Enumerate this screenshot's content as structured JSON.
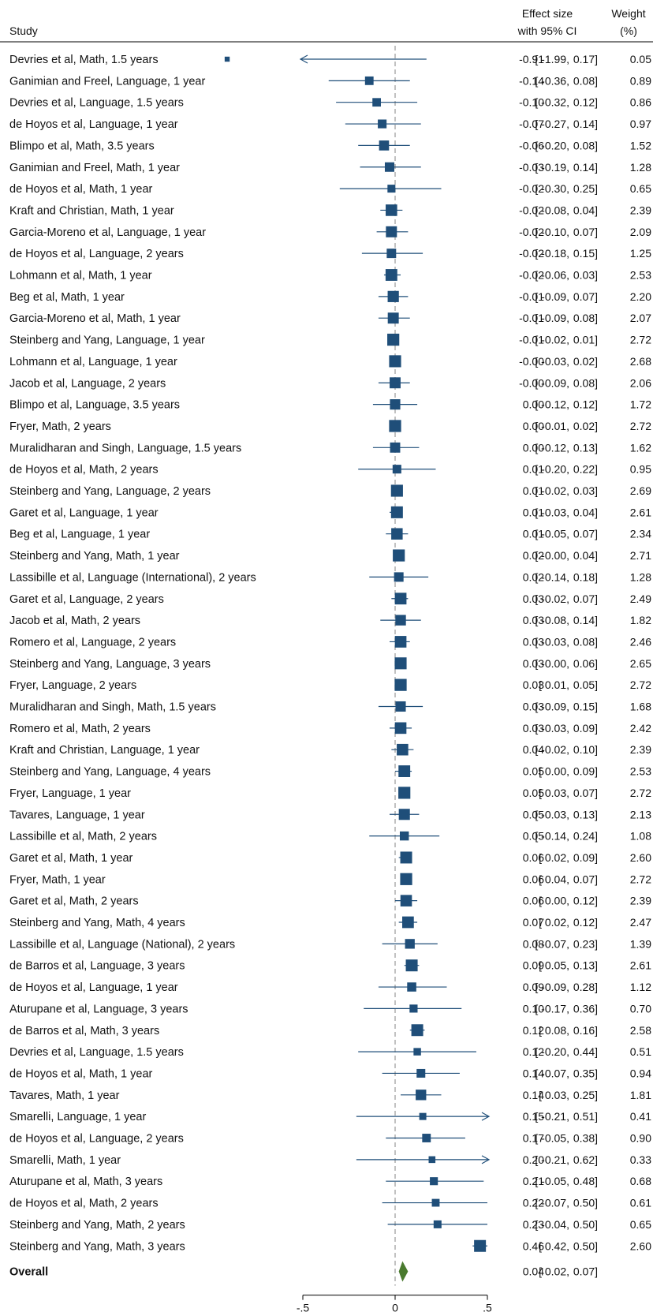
{
  "chart_data": {
    "type": "forest",
    "headers": {
      "study": "Study",
      "effect": [
        "Effect size",
        "with 95% CI"
      ],
      "weight": [
        "Weight",
        "(%)"
      ]
    },
    "x_ticks": [
      "-.5",
      "0",
      ".5"
    ],
    "xlim": [
      -0.5,
      0.5
    ],
    "colors": {
      "marker": "#1f4e79",
      "overall": "#4a7a2e",
      "zero_line": "#999999"
    },
    "studies": [
      {
        "label": "Devries et al, Math, 1.5 years",
        "es": -0.91,
        "lo": -1.99,
        "hi": 0.17,
        "es_txt": "-0.91",
        "lo_txt": "-1.99",
        "hi_txt": "0.17",
        "w_txt": "0.05",
        "w": 0.05
      },
      {
        "label": "Ganimian and Freel, Language, 1 year",
        "es": -0.14,
        "lo": -0.36,
        "hi": 0.08,
        "es_txt": "-0.14",
        "lo_txt": "-0.36",
        "hi_txt": "0.08",
        "w_txt": "0.89",
        "w": 0.89
      },
      {
        "label": "Devries et al, Language, 1.5 years",
        "es": -0.1,
        "lo": -0.32,
        "hi": 0.12,
        "es_txt": "-0.10",
        "lo_txt": "-0.32",
        "hi_txt": "0.12",
        "w_txt": "0.86",
        "w": 0.86
      },
      {
        "label": "de Hoyos et al, Language, 1 year",
        "es": -0.07,
        "lo": -0.27,
        "hi": 0.14,
        "es_txt": "-0.07",
        "lo_txt": "-0.27",
        "hi_txt": "0.14",
        "w_txt": "0.97",
        "w": 0.97
      },
      {
        "label": "Blimpo et al, Math, 3.5 years",
        "es": -0.06,
        "lo": -0.2,
        "hi": 0.08,
        "es_txt": "-0.06",
        "lo_txt": "-0.20",
        "hi_txt": "0.08",
        "w_txt": "1.52",
        "w": 1.52
      },
      {
        "label": "Ganimian and Freel, Math, 1 year",
        "es": -0.03,
        "lo": -0.19,
        "hi": 0.14,
        "es_txt": "-0.03",
        "lo_txt": "-0.19",
        "hi_txt": "0.14",
        "w_txt": "1.28",
        "w": 1.28
      },
      {
        "label": "de Hoyos et al, Math, 1 year",
        "es": -0.02,
        "lo": -0.3,
        "hi": 0.25,
        "es_txt": "-0.02",
        "lo_txt": "-0.30",
        "hi_txt": "0.25",
        "w_txt": "0.65",
        "w": 0.65
      },
      {
        "label": "Kraft and Christian, Math, 1 year",
        "es": -0.02,
        "lo": -0.08,
        "hi": 0.04,
        "es_txt": "-0.02",
        "lo_txt": "-0.08",
        "hi_txt": "0.04",
        "w_txt": "2.39",
        "w": 2.39
      },
      {
        "label": "Garcia-Moreno et al, Language, 1 year",
        "es": -0.02,
        "lo": -0.1,
        "hi": 0.07,
        "es_txt": "-0.02",
        "lo_txt": "-0.10",
        "hi_txt": "0.07",
        "w_txt": "2.09",
        "w": 2.09
      },
      {
        "label": "de Hoyos et al, Language, 2 years",
        "es": -0.02,
        "lo": -0.18,
        "hi": 0.15,
        "es_txt": "-0.02",
        "lo_txt": "-0.18",
        "hi_txt": "0.15",
        "w_txt": "1.25",
        "w": 1.25
      },
      {
        "label": "Lohmann et al, Math, 1 year",
        "es": -0.02,
        "lo": -0.06,
        "hi": 0.03,
        "es_txt": "-0.02",
        "lo_txt": "-0.06",
        "hi_txt": "0.03",
        "w_txt": "2.53",
        "w": 2.53
      },
      {
        "label": "Beg et al, Math, 1 year",
        "es": -0.01,
        "lo": -0.09,
        "hi": 0.07,
        "es_txt": "-0.01",
        "lo_txt": "-0.09",
        "hi_txt": "0.07",
        "w_txt": "2.20",
        "w": 2.2
      },
      {
        "label": "Garcia-Moreno et al, Math, 1 year",
        "es": -0.01,
        "lo": -0.09,
        "hi": 0.08,
        "es_txt": "-0.01",
        "lo_txt": "-0.09",
        "hi_txt": "0.08",
        "w_txt": "2.07",
        "w": 2.07
      },
      {
        "label": "Steinberg and Yang, Language, 1 year",
        "es": -0.01,
        "lo": -0.02,
        "hi": 0.01,
        "es_txt": "-0.01",
        "lo_txt": "-0.02",
        "hi_txt": "0.01",
        "w_txt": "2.72",
        "w": 2.72
      },
      {
        "label": "Lohmann et al, Language, 1 year",
        "es": -0.0,
        "lo": -0.03,
        "hi": 0.02,
        "es_txt": "-0.00",
        "lo_txt": "-0.03",
        "hi_txt": "0.02",
        "w_txt": "2.68",
        "w": 2.68
      },
      {
        "label": "Jacob et al, Language, 2 years",
        "es": -0.0,
        "lo": -0.09,
        "hi": 0.08,
        "es_txt": "-0.00",
        "lo_txt": "-0.09",
        "hi_txt": "0.08",
        "w_txt": "2.06",
        "w": 2.06
      },
      {
        "label": "Blimpo et al, Language, 3.5 years",
        "es": 0.0,
        "lo": -0.12,
        "hi": 0.12,
        "es_txt": "0.00",
        "lo_txt": "-0.12",
        "hi_txt": "0.12",
        "w_txt": "1.72",
        "w": 1.72
      },
      {
        "label": "Fryer, Math, 2 years",
        "es": 0.0,
        "lo": -0.01,
        "hi": 0.02,
        "es_txt": "0.00",
        "lo_txt": "-0.01",
        "hi_txt": "0.02",
        "w_txt": "2.72",
        "w": 2.72
      },
      {
        "label": "Muralidharan and Singh, Language, 1.5 years",
        "es": 0.0,
        "lo": -0.12,
        "hi": 0.13,
        "es_txt": "0.00",
        "lo_txt": "-0.12",
        "hi_txt": "0.13",
        "w_txt": "1.62",
        "w": 1.62
      },
      {
        "label": "de Hoyos et al, Math, 2 years",
        "es": 0.01,
        "lo": -0.2,
        "hi": 0.22,
        "es_txt": "0.01",
        "lo_txt": "-0.20",
        "hi_txt": "0.22",
        "w_txt": "0.95",
        "w": 0.95
      },
      {
        "label": "Steinberg and Yang, Language, 2 years",
        "es": 0.01,
        "lo": -0.02,
        "hi": 0.03,
        "es_txt": "0.01",
        "lo_txt": "-0.02",
        "hi_txt": "0.03",
        "w_txt": "2.69",
        "w": 2.69
      },
      {
        "label": "Garet et al, Language, 1 year",
        "es": 0.01,
        "lo": -0.03,
        "hi": 0.04,
        "es_txt": "0.01",
        "lo_txt": "-0.03",
        "hi_txt": "0.04",
        "w_txt": "2.61",
        "w": 2.61
      },
      {
        "label": "Beg et al, Language, 1 year",
        "es": 0.01,
        "lo": -0.05,
        "hi": 0.07,
        "es_txt": "0.01",
        "lo_txt": "-0.05",
        "hi_txt": "0.07",
        "w_txt": "2.34",
        "w": 2.34
      },
      {
        "label": "Steinberg and Yang, Math, 1 year",
        "es": 0.02,
        "lo": -0.0,
        "hi": 0.04,
        "es_txt": "0.02",
        "lo_txt": "-0.00",
        "hi_txt": "0.04",
        "w_txt": "2.71",
        "w": 2.71
      },
      {
        "label": "Lassibille et al, Language (International), 2 years",
        "es": 0.02,
        "lo": -0.14,
        "hi": 0.18,
        "es_txt": "0.02",
        "lo_txt": "-0.14",
        "hi_txt": "0.18",
        "w_txt": "1.28",
        "w": 1.28
      },
      {
        "label": "Garet et al, Language, 2 years",
        "es": 0.03,
        "lo": -0.02,
        "hi": 0.07,
        "es_txt": "0.03",
        "lo_txt": "-0.02",
        "hi_txt": "0.07",
        "w_txt": "2.49",
        "w": 2.49
      },
      {
        "label": "Jacob et al, Math, 2 years",
        "es": 0.03,
        "lo": -0.08,
        "hi": 0.14,
        "es_txt": "0.03",
        "lo_txt": "-0.08",
        "hi_txt": "0.14",
        "w_txt": "1.82",
        "w": 1.82
      },
      {
        "label": "Romero et al, Language, 2 years",
        "es": 0.03,
        "lo": -0.03,
        "hi": 0.08,
        "es_txt": "0.03",
        "lo_txt": "-0.03",
        "hi_txt": "0.08",
        "w_txt": "2.46",
        "w": 2.46
      },
      {
        "label": "Steinberg and Yang, Language, 3 years",
        "es": 0.03,
        "lo": -0.0,
        "hi": 0.06,
        "es_txt": "0.03",
        "lo_txt": "-0.00",
        "hi_txt": "0.06",
        "w_txt": "2.65",
        "w": 2.65
      },
      {
        "label": "Fryer, Language, 2 years",
        "es": 0.03,
        "lo": 0.01,
        "hi": 0.05,
        "es_txt": "0.03",
        "lo_txt": "0.01",
        "hi_txt": "0.05",
        "w_txt": "2.72",
        "w": 2.72
      },
      {
        "label": "Muralidharan and Singh, Math, 1.5 years",
        "es": 0.03,
        "lo": -0.09,
        "hi": 0.15,
        "es_txt": "0.03",
        "lo_txt": "-0.09",
        "hi_txt": "0.15",
        "w_txt": "1.68",
        "w": 1.68
      },
      {
        "label": "Romero et al, Math, 2 years",
        "es": 0.03,
        "lo": -0.03,
        "hi": 0.09,
        "es_txt": "0.03",
        "lo_txt": "-0.03",
        "hi_txt": "0.09",
        "w_txt": "2.42",
        "w": 2.42
      },
      {
        "label": "Kraft and Christian, Language, 1 year",
        "es": 0.04,
        "lo": -0.02,
        "hi": 0.1,
        "es_txt": "0.04",
        "lo_txt": "-0.02",
        "hi_txt": "0.10",
        "w_txt": "2.39",
        "w": 2.39
      },
      {
        "label": "Steinberg and Yang, Language, 4 years",
        "es": 0.05,
        "lo": 0.0,
        "hi": 0.09,
        "es_txt": "0.05",
        "lo_txt": "0.00",
        "hi_txt": "0.09",
        "w_txt": "2.53",
        "w": 2.53
      },
      {
        "label": "Fryer, Language, 1 year",
        "es": 0.05,
        "lo": 0.03,
        "hi": 0.07,
        "es_txt": "0.05",
        "lo_txt": "0.03",
        "hi_txt": "0.07",
        "w_txt": "2.72",
        "w": 2.72
      },
      {
        "label": "Tavares, Language, 1 year",
        "es": 0.05,
        "lo": -0.03,
        "hi": 0.13,
        "es_txt": "0.05",
        "lo_txt": "-0.03",
        "hi_txt": "0.13",
        "w_txt": "2.13",
        "w": 2.13
      },
      {
        "label": "Lassibille et al, Math, 2 years",
        "es": 0.05,
        "lo": -0.14,
        "hi": 0.24,
        "es_txt": "0.05",
        "lo_txt": "-0.14",
        "hi_txt": "0.24",
        "w_txt": "1.08",
        "w": 1.08
      },
      {
        "label": "Garet et al, Math, 1 year",
        "es": 0.06,
        "lo": 0.02,
        "hi": 0.09,
        "es_txt": "0.06",
        "lo_txt": "0.02",
        "hi_txt": "0.09",
        "w_txt": "2.60",
        "w": 2.6
      },
      {
        "label": "Fryer, Math, 1 year",
        "es": 0.06,
        "lo": 0.04,
        "hi": 0.07,
        "es_txt": "0.06",
        "lo_txt": "0.04",
        "hi_txt": "0.07",
        "w_txt": "2.72",
        "w": 2.72
      },
      {
        "label": "Garet et al, Math, 2 years",
        "es": 0.06,
        "lo": 0.0,
        "hi": 0.12,
        "es_txt": "0.06",
        "lo_txt": "0.00",
        "hi_txt": "0.12",
        "w_txt": "2.39",
        "w": 2.39
      },
      {
        "label": "Steinberg and Yang, Math, 4 years",
        "es": 0.07,
        "lo": 0.02,
        "hi": 0.12,
        "es_txt": "0.07",
        "lo_txt": "0.02",
        "hi_txt": "0.12",
        "w_txt": "2.47",
        "w": 2.47
      },
      {
        "label": "Lassibille et al, Language (National), 2 years",
        "es": 0.08,
        "lo": -0.07,
        "hi": 0.23,
        "es_txt": "0.08",
        "lo_txt": "-0.07",
        "hi_txt": "0.23",
        "w_txt": "1.39",
        "w": 1.39
      },
      {
        "label": "de Barros et al, Language, 3 years",
        "es": 0.09,
        "lo": 0.05,
        "hi": 0.13,
        "es_txt": "0.09",
        "lo_txt": "0.05",
        "hi_txt": "0.13",
        "w_txt": "2.61",
        "w": 2.61
      },
      {
        "label": "de Hoyos et al, Language, 1 year",
        "es": 0.09,
        "lo": -0.09,
        "hi": 0.28,
        "es_txt": "0.09",
        "lo_txt": "-0.09",
        "hi_txt": "0.28",
        "w_txt": "1.12",
        "w": 1.12
      },
      {
        "label": "Aturupane et al, Language, 3 years",
        "es": 0.1,
        "lo": -0.17,
        "hi": 0.36,
        "es_txt": "0.10",
        "lo_txt": "-0.17",
        "hi_txt": "0.36",
        "w_txt": "0.70",
        "w": 0.7
      },
      {
        "label": "de Barros et al, Math, 3 years",
        "es": 0.12,
        "lo": 0.08,
        "hi": 0.16,
        "es_txt": "0.12",
        "lo_txt": "0.08",
        "hi_txt": "0.16",
        "w_txt": "2.58",
        "w": 2.58
      },
      {
        "label": "Devries et al, Language, 1.5 years",
        "es": 0.12,
        "lo": -0.2,
        "hi": 0.44,
        "es_txt": "0.12",
        "lo_txt": "-0.20",
        "hi_txt": "0.44",
        "w_txt": "0.51",
        "w": 0.51
      },
      {
        "label": "de Hoyos et al, Math, 1 year",
        "es": 0.14,
        "lo": -0.07,
        "hi": 0.35,
        "es_txt": "0.14",
        "lo_txt": "-0.07",
        "hi_txt": "0.35",
        "w_txt": "0.94",
        "w": 0.94
      },
      {
        "label": "Tavares, Math, 1 year",
        "es": 0.14,
        "lo": 0.03,
        "hi": 0.25,
        "es_txt": "0.14",
        "lo_txt": "0.03",
        "hi_txt": "0.25",
        "w_txt": "1.81",
        "w": 1.81
      },
      {
        "label": "Smarelli, Language, 1 year",
        "es": 0.15,
        "lo": -0.21,
        "hi": 0.51,
        "es_txt": "0.15",
        "lo_txt": "-0.21",
        "hi_txt": "0.51",
        "w_txt": "0.41",
        "w": 0.41
      },
      {
        "label": "de Hoyos et al, Language, 2 years",
        "es": 0.17,
        "lo": -0.05,
        "hi": 0.38,
        "es_txt": "0.17",
        "lo_txt": "-0.05",
        "hi_txt": "0.38",
        "w_txt": "0.90",
        "w": 0.9
      },
      {
        "label": "Smarelli, Math, 1 year",
        "es": 0.2,
        "lo": -0.21,
        "hi": 0.62,
        "es_txt": "0.20",
        "lo_txt": "-0.21",
        "hi_txt": "0.62",
        "w_txt": "0.33",
        "w": 0.33
      },
      {
        "label": "Aturupane et al, Math, 3 years",
        "es": 0.21,
        "lo": -0.05,
        "hi": 0.48,
        "es_txt": "0.21",
        "lo_txt": "-0.05",
        "hi_txt": "0.48",
        "w_txt": "0.68",
        "w": 0.68
      },
      {
        "label": "de Hoyos et al, Math, 2 years",
        "es": 0.22,
        "lo": -0.07,
        "hi": 0.5,
        "es_txt": "0.22",
        "lo_txt": "-0.07",
        "hi_txt": "0.50",
        "w_txt": "0.61",
        "w": 0.61
      },
      {
        "label": "Steinberg and Yang, Math, 2 years",
        "es": 0.23,
        "lo": -0.04,
        "hi": 0.5,
        "es_txt": "0.23",
        "lo_txt": "-0.04",
        "hi_txt": "0.50",
        "w_txt": "0.65",
        "w": 0.65
      },
      {
        "label": "Steinberg and Yang, Math, 3 years",
        "es": 0.46,
        "lo": 0.42,
        "hi": 0.5,
        "es_txt": "0.46",
        "lo_txt": "0.42",
        "hi_txt": "0.50",
        "w_txt": "2.60",
        "w": 2.6
      }
    ],
    "overall": {
      "label": "Overall",
      "es": 0.04,
      "lo": 0.02,
      "hi": 0.07,
      "es_txt": "0.04",
      "lo_txt": "0.02",
      "hi_txt": "0.07"
    }
  }
}
